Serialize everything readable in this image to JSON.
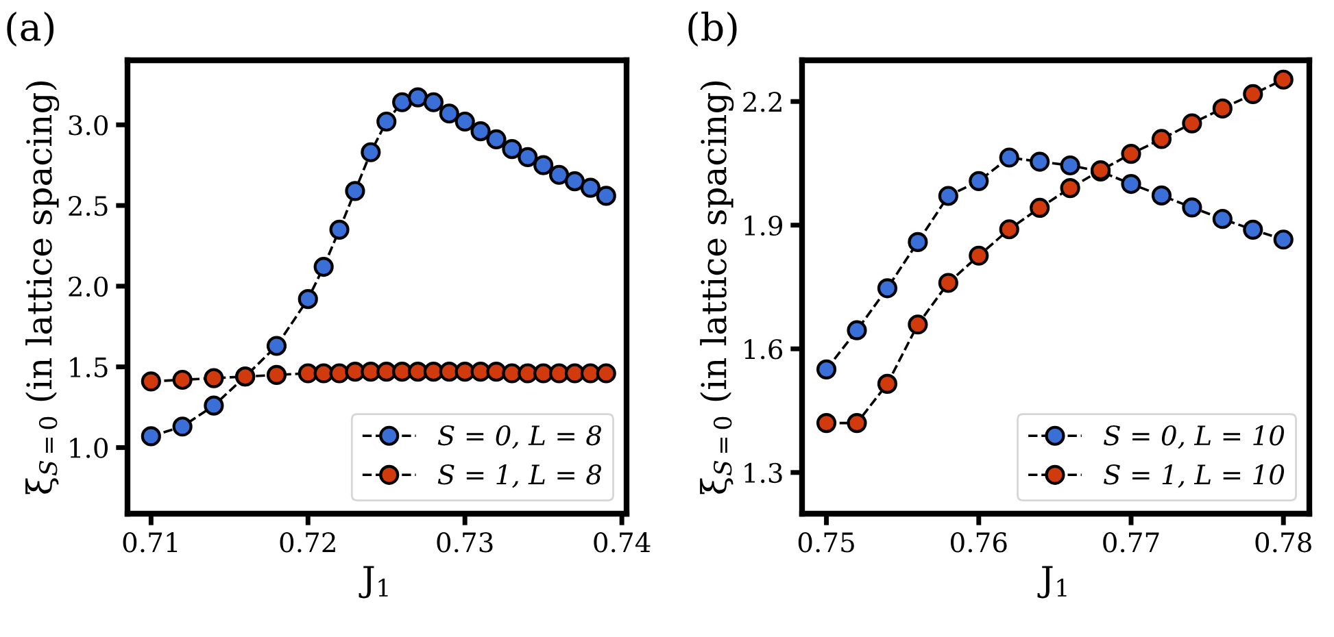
{
  "chart_data": [
    {
      "type": "line",
      "title": "(a)",
      "xlabel": "J$_{1}$",
      "ylabel": "ξ$_{S=0}$ (in lattice spacing)",
      "marker": "circle",
      "line_style": "dashed",
      "legend": "bottom right",
      "grid": false,
      "x": [
        0.71,
        0.712,
        0.714,
        0.716,
        0.718,
        0.72,
        0.721,
        0.722,
        0.723,
        0.724,
        0.725,
        0.726,
        0.727,
        0.728,
        0.729,
        0.73,
        0.731,
        0.732,
        0.733,
        0.734,
        0.735,
        0.736,
        0.737,
        0.738,
        0.739
      ],
      "series": [
        {
          "name": "S = 0, L = 8",
          "color": "#3a6fd8",
          "values": [
            1.07,
            1.13,
            1.26,
            1.44,
            1.63,
            1.92,
            2.12,
            2.35,
            2.59,
            2.83,
            3.02,
            3.14,
            3.17,
            3.14,
            3.07,
            3.02,
            2.96,
            2.91,
            2.85,
            2.8,
            2.75,
            2.69,
            2.65,
            2.61,
            2.56
          ]
        },
        {
          "name": "S = 1, L = 8",
          "color": "#d13a0c",
          "values": [
            1.41,
            1.42,
            1.43,
            1.44,
            1.45,
            1.46,
            1.46,
            1.46,
            1.47,
            1.47,
            1.47,
            1.47,
            1.47,
            1.47,
            1.47,
            1.47,
            1.47,
            1.47,
            1.46,
            1.46,
            1.46,
            1.46,
            1.46,
            1.46,
            1.46
          ]
        }
      ],
      "xlim": [
        0.7085,
        0.7403
      ],
      "xticks": [
        0.71,
        0.72,
        0.73,
        0.74
      ],
      "ylim": [
        0.59,
        3.4
      ],
      "yticks": [
        {
          "value": 1,
          "label": "1.0"
        },
        1.5,
        {
          "value": 2,
          "label": "2.0"
        },
        2.5,
        {
          "value": 3,
          "label": "3.0"
        }
      ]
    },
    {
      "type": "line",
      "title": "(b)",
      "xlabel": "J$_{1}$",
      "ylabel": "ξ$_{S=0}$ (in lattice spacing)",
      "marker": "circle",
      "line_style": "dashed",
      "legend": "bottom right",
      "grid": false,
      "x": [
        0.75,
        0.752,
        0.754,
        0.756,
        0.758,
        0.76,
        0.762,
        0.764,
        0.766,
        0.768,
        0.77,
        0.772,
        0.774,
        0.776,
        0.778,
        0.78
      ],
      "series": [
        {
          "name": "S = 0, L = 10",
          "color": "#3a6fd8",
          "values": [
            1.55,
            1.645,
            1.747,
            1.859,
            1.971,
            2.007,
            2.064,
            2.054,
            2.045,
            2.03,
            2.0,
            1.972,
            1.943,
            1.915,
            1.889,
            1.865
          ]
        },
        {
          "name": "S = 1, L = 10",
          "color": "#d13a0c",
          "values": [
            1.42,
            1.42,
            1.515,
            1.659,
            1.76,
            1.826,
            1.89,
            1.942,
            1.99,
            2.033,
            2.073,
            2.109,
            2.147,
            2.183,
            2.218,
            2.253
          ]
        }
      ],
      "xlim": [
        0.7484,
        0.7817
      ],
      "xticks": [
        0.75,
        0.76,
        0.77,
        0.78
      ],
      "ylim": [
        1.2,
        2.3
      ],
      "yticks": [
        1.3,
        1.6,
        1.9,
        2.2
      ]
    }
  ]
}
